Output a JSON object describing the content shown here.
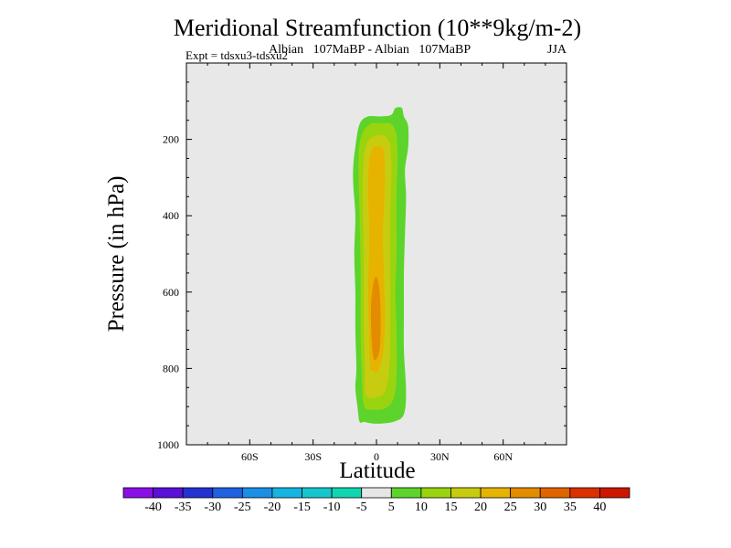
{
  "chart_data": {
    "type": "contour",
    "title": "Meridional Streamfunction (10**9kg/m-2)",
    "subtitle_experiment": "Albian   107MaBP - Albian   107MaBP",
    "subtitle_season": "JJA",
    "expt_label": "Expt = tdsxu3-tdsxu2",
    "xlabel": "Latitude",
    "ylabel": "Pressure (in hPa)",
    "xlim": [
      -90,
      90
    ],
    "ylim": [
      1000,
      0
    ],
    "x_ticks": [
      {
        "value": -60,
        "label": "60S"
      },
      {
        "value": -30,
        "label": "30S"
      },
      {
        "value": 0,
        "label": "0"
      },
      {
        "value": 30,
        "label": "30N"
      },
      {
        "value": 60,
        "label": "60N"
      }
    ],
    "y_ticks": [
      {
        "value": 200,
        "label": "200"
      },
      {
        "value": 400,
        "label": "400"
      },
      {
        "value": 600,
        "label": "600"
      },
      {
        "value": 800,
        "label": "800"
      },
      {
        "value": 1000,
        "label": "1000"
      }
    ],
    "plot_background": "#e8e8e8",
    "colorbar": {
      "labels": [
        "-40",
        "-35",
        "-30",
        "-25",
        "-20",
        "-15",
        "-10",
        "-5",
        "5",
        "10",
        "15",
        "20",
        "25",
        "30",
        "35",
        "40"
      ],
      "colors": [
        "#8a0fe6",
        "#5a10d6",
        "#2233d0",
        "#2160e0",
        "#1a8fe3",
        "#16b4e3",
        "#17c6cc",
        "#10d6b0",
        "#e6e6e6",
        "#5cd42b",
        "#9ad40e",
        "#c8cc10",
        "#e6b300",
        "#e38c00",
        "#e06400",
        "#dc3000",
        "#cc1600"
      ]
    },
    "filled_regions": [
      {
        "level": "5 to 10",
        "color": "#5cd42b",
        "outline": [
          [
            -8,
            940
          ],
          [
            -9,
            900
          ],
          [
            -10,
            850
          ],
          [
            -9.5,
            800
          ],
          [
            -10,
            700
          ],
          [
            -10,
            600
          ],
          [
            -10.5,
            500
          ],
          [
            -10,
            400
          ],
          [
            -11,
            320
          ],
          [
            -11,
            270
          ],
          [
            -10,
            220
          ],
          [
            -8,
            160
          ],
          [
            -4,
            140
          ],
          [
            2,
            140
          ],
          [
            7,
            136
          ],
          [
            9,
            118
          ],
          [
            12,
            118
          ],
          [
            13,
            140
          ],
          [
            15,
            165
          ],
          [
            15,
            220
          ],
          [
            13.5,
            280
          ],
          [
            14,
            350
          ],
          [
            13.5,
            450
          ],
          [
            13,
            550
          ],
          [
            13,
            650
          ],
          [
            13,
            750
          ],
          [
            14,
            860
          ],
          [
            13,
            920
          ],
          [
            9,
            938
          ],
          [
            3,
            944
          ],
          [
            -2,
            944
          ],
          [
            -6,
            940
          ]
        ]
      },
      {
        "level": "10 to 15",
        "color": "#9ad40e",
        "outline": [
          [
            -6,
            895
          ],
          [
            -7,
            800
          ],
          [
            -7.5,
            700
          ],
          [
            -7.5,
            550
          ],
          [
            -8,
            400
          ],
          [
            -8.5,
            250
          ],
          [
            -7,
            190
          ],
          [
            -3,
            160
          ],
          [
            3,
            158
          ],
          [
            7,
            160
          ],
          [
            9.5,
            190
          ],
          [
            10,
            260
          ],
          [
            9.5,
            350
          ],
          [
            9.5,
            500
          ],
          [
            9,
            600
          ],
          [
            9.5,
            700
          ],
          [
            9.5,
            820
          ],
          [
            8,
            880
          ],
          [
            4,
            905
          ],
          [
            -2,
            908
          ]
        ]
      },
      {
        "level": "15 to 20",
        "color": "#c8cc10",
        "outline": [
          [
            -5,
            870
          ],
          [
            -5.5,
            800
          ],
          [
            -6,
            650
          ],
          [
            -6,
            500
          ],
          [
            -6.5,
            350
          ],
          [
            -6,
            250
          ],
          [
            -4,
            205
          ],
          [
            0,
            190
          ],
          [
            4,
            192
          ],
          [
            6.5,
            220
          ],
          [
            7,
            300
          ],
          [
            6.5,
            400
          ],
          [
            6.5,
            550
          ],
          [
            6.5,
            700
          ],
          [
            6,
            800
          ],
          [
            4,
            860
          ],
          [
            0,
            875
          ]
        ]
      },
      {
        "level": "20 to 25",
        "color": "#e6b300",
        "outline": [
          [
            -3,
            800
          ],
          [
            -3.5,
            700
          ],
          [
            -4,
            600
          ],
          [
            -3.5,
            500
          ],
          [
            -3.5,
            420
          ],
          [
            -4,
            330
          ],
          [
            -3.5,
            260
          ],
          [
            -2,
            225
          ],
          [
            1,
            218
          ],
          [
            3.5,
            230
          ],
          [
            4,
            300
          ],
          [
            3.5,
            380
          ],
          [
            3,
            450
          ],
          [
            3.5,
            550
          ],
          [
            4,
            650
          ],
          [
            3.5,
            740
          ],
          [
            2,
            790
          ],
          [
            0,
            810
          ],
          [
            -2,
            805
          ]
        ]
      },
      {
        "level": "25 to 30",
        "color": "#e38c00",
        "outline": [
          [
            -1.5,
            770
          ],
          [
            -2.5,
            700
          ],
          [
            -2.5,
            630
          ],
          [
            -1.5,
            580
          ],
          [
            0,
            560
          ],
          [
            1.5,
            600
          ],
          [
            2,
            680
          ],
          [
            1.5,
            750
          ],
          [
            0,
            775
          ]
        ]
      }
    ]
  }
}
